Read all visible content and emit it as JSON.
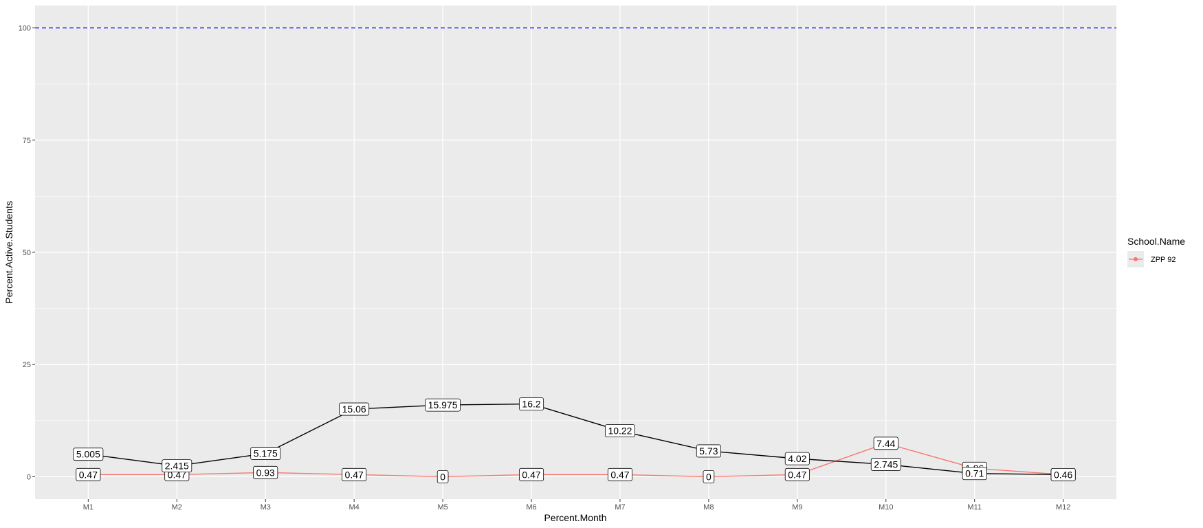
{
  "chart_data": {
    "type": "line",
    "title": "",
    "xlabel": "Percent.Month",
    "ylabel": "Percent.Active.Students",
    "categories": [
      "M1",
      "M2",
      "M3",
      "M4",
      "M5",
      "M6",
      "M7",
      "M8",
      "M9",
      "M10",
      "M11",
      "M12"
    ],
    "ylim": [
      -5,
      105
    ],
    "yticks": [
      0,
      25,
      50,
      75,
      100
    ],
    "grid": true,
    "reference_line": {
      "y": 100,
      "style": "dashed",
      "color": "#0000ff"
    },
    "series": [
      {
        "values": [
          5.005,
          2.415,
          5.175,
          15.06,
          15.975,
          16.2,
          10.22,
          5.73,
          4.02,
          2.745,
          0.71,
          0.46
        ],
        "labels": [
          "5.005",
          "2.415",
          "5.175",
          "15.06",
          "15.975",
          "16.2",
          "10.22",
          "5.73",
          "4.02",
          "2.745",
          "0.71",
          "0.46"
        ],
        "color": "#000000"
      },
      {
        "name": "ZPP 92",
        "values": [
          0.47,
          0.47,
          0.93,
          0.47,
          0,
          0.47,
          0.47,
          0,
          0.47,
          7.44,
          1.86,
          0.46
        ],
        "labels": [
          "0.47",
          "0.47",
          "0.93",
          "0.47",
          "0",
          "0.47",
          "0.47",
          "0",
          "0.47",
          "7.44",
          "1.86",
          "0.46"
        ],
        "color": "#f8766d"
      }
    ],
    "legend": {
      "title": "School.Name",
      "position": "right",
      "items": [
        {
          "label": "ZPP 92",
          "color": "#f8766d"
        }
      ]
    }
  }
}
